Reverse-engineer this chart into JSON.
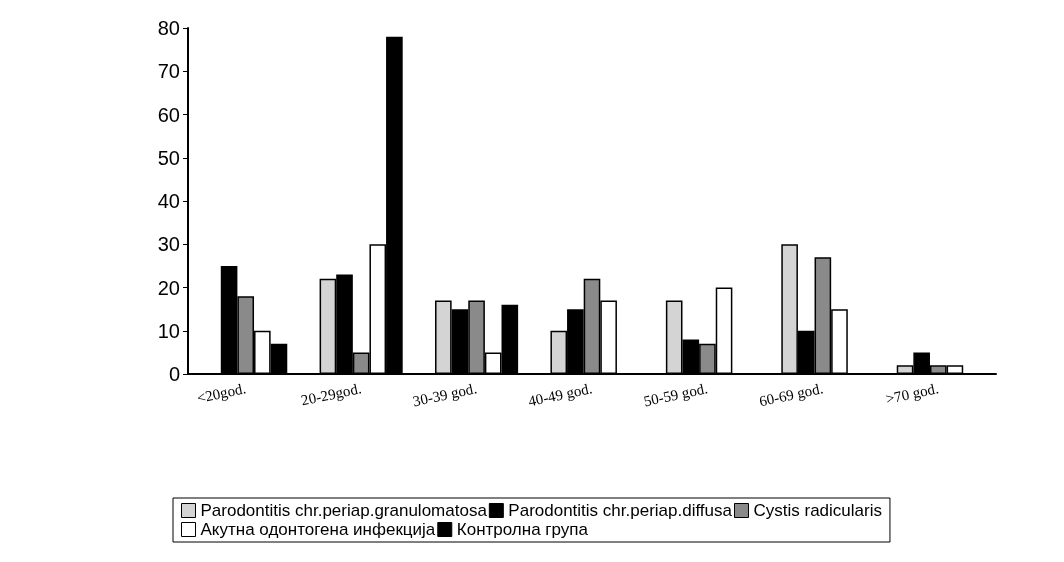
{
  "chart_data": {
    "type": "bar",
    "categories": [
      "<20god.",
      "20-29god.",
      "30-39 god.",
      "40-49 god.",
      "50-59 god.",
      "60-69 god.",
      ">70 god."
    ],
    "ylim": [
      0,
      80
    ],
    "yticks": [
      0,
      10,
      20,
      30,
      40,
      50,
      60,
      70,
      80
    ],
    "grid": false,
    "legend": "bottom",
    "series": [
      {
        "name": "Parodontitis chr.periap.granulomatosa",
        "color": "#d4d4d4",
        "values": [
          null,
          22,
          17,
          10,
          17,
          30,
          2
        ]
      },
      {
        "name": "Parodontitis chr.periap.diffusa",
        "color": "#000000",
        "values": [
          25,
          23,
          15,
          15,
          8,
          10,
          5
        ]
      },
      {
        "name": "Cystis radicularis",
        "color": "#8a8a8a",
        "values": [
          18,
          5,
          17,
          22,
          7,
          27,
          2
        ]
      },
      {
        "name": "Акутна одонтогена инфекција",
        "color": "#ffffff",
        "values": [
          10,
          30,
          5,
          17,
          20,
          15,
          2
        ]
      },
      {
        "name": "Контролна група",
        "color": "#000000",
        "values": [
          7,
          78,
          16,
          null,
          null,
          null,
          null
        ]
      }
    ]
  }
}
